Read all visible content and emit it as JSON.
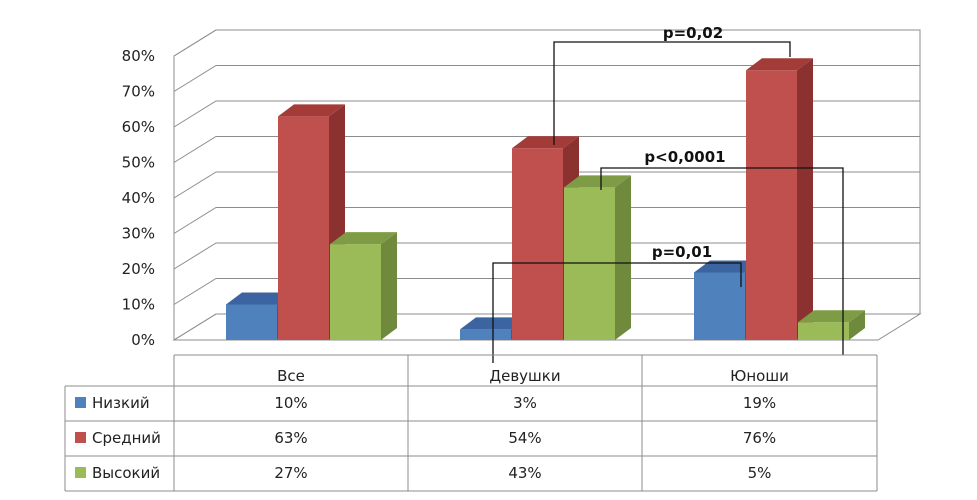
{
  "chart_data": {
    "type": "bar",
    "style": "3d-clustered-column-with-data-table",
    "categories": [
      "Все",
      "Девушки",
      "Юноши"
    ],
    "series": [
      {
        "name": "Низкий",
        "color": "#4f81bd",
        "side_color": "#385d8a",
        "top_color": "#3b64a0",
        "values": [
          10,
          3,
          19
        ],
        "labels": [
          "10%",
          "3%",
          "19%"
        ]
      },
      {
        "name": "Средний",
        "color": "#c0504d",
        "side_color": "#8b3230",
        "top_color": "#a33b38",
        "values": [
          63,
          54,
          76
        ],
        "labels": [
          "63%",
          "54%",
          "76%"
        ]
      },
      {
        "name": "Высокий",
        "color": "#9bbb59",
        "side_color": "#6f8a3c",
        "top_color": "#7e9b45",
        "values": [
          27,
          43,
          5
        ],
        "labels": [
          "27%",
          "43%",
          "5%"
        ]
      }
    ],
    "y_ticks": [
      "0%",
      "10%",
      "20%",
      "30%",
      "40%",
      "50%",
      "60%",
      "70%",
      "80%"
    ],
    "ylim": [
      0,
      80
    ],
    "grid": true,
    "legend_placement": "data-table-left",
    "annotations": [
      {
        "text": "p=0,02",
        "between": [
          "Девушки",
          "Юноши"
        ],
        "series": "Средний"
      },
      {
        "text": "p<0,0001",
        "between": [
          "Девушки",
          "Юноши"
        ],
        "series": "Высокий"
      },
      {
        "text": "p=0,01",
        "between": [
          "Девушки",
          "Юноши"
        ],
        "series": "Низкий"
      }
    ]
  }
}
